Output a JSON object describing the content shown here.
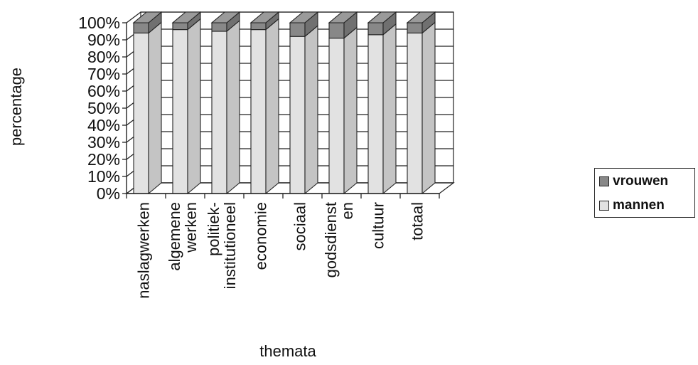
{
  "chart_data": {
    "type": "bar",
    "stacked": true,
    "percent_stacked": true,
    "three_d": true,
    "title": "",
    "xlabel": "themata",
    "ylabel": "percentage",
    "ylim": [
      0,
      100
    ],
    "y_ticks": [
      "0%",
      "10%",
      "20%",
      "30%",
      "40%",
      "50%",
      "60%",
      "70%",
      "80%",
      "90%",
      "100%"
    ],
    "grid": true,
    "legend_position": "right",
    "categories": [
      [
        "naslagwerken"
      ],
      [
        "algemene",
        "werken"
      ],
      [
        "politiek-",
        "institutioneel"
      ],
      [
        "economie"
      ],
      [
        "sociaal"
      ],
      [
        "godsdienst",
        "en"
      ],
      [
        "cultuur"
      ],
      [
        "totaal"
      ]
    ],
    "series": [
      {
        "name": "mannen",
        "values": [
          94,
          96,
          95,
          96,
          92,
          91,
          93,
          94
        ],
        "color": "#e2e2e2"
      },
      {
        "name": "vrouwen",
        "values": [
          6,
          4,
          5,
          4,
          8,
          9,
          7,
          6
        ],
        "color": "#888888"
      }
    ]
  }
}
